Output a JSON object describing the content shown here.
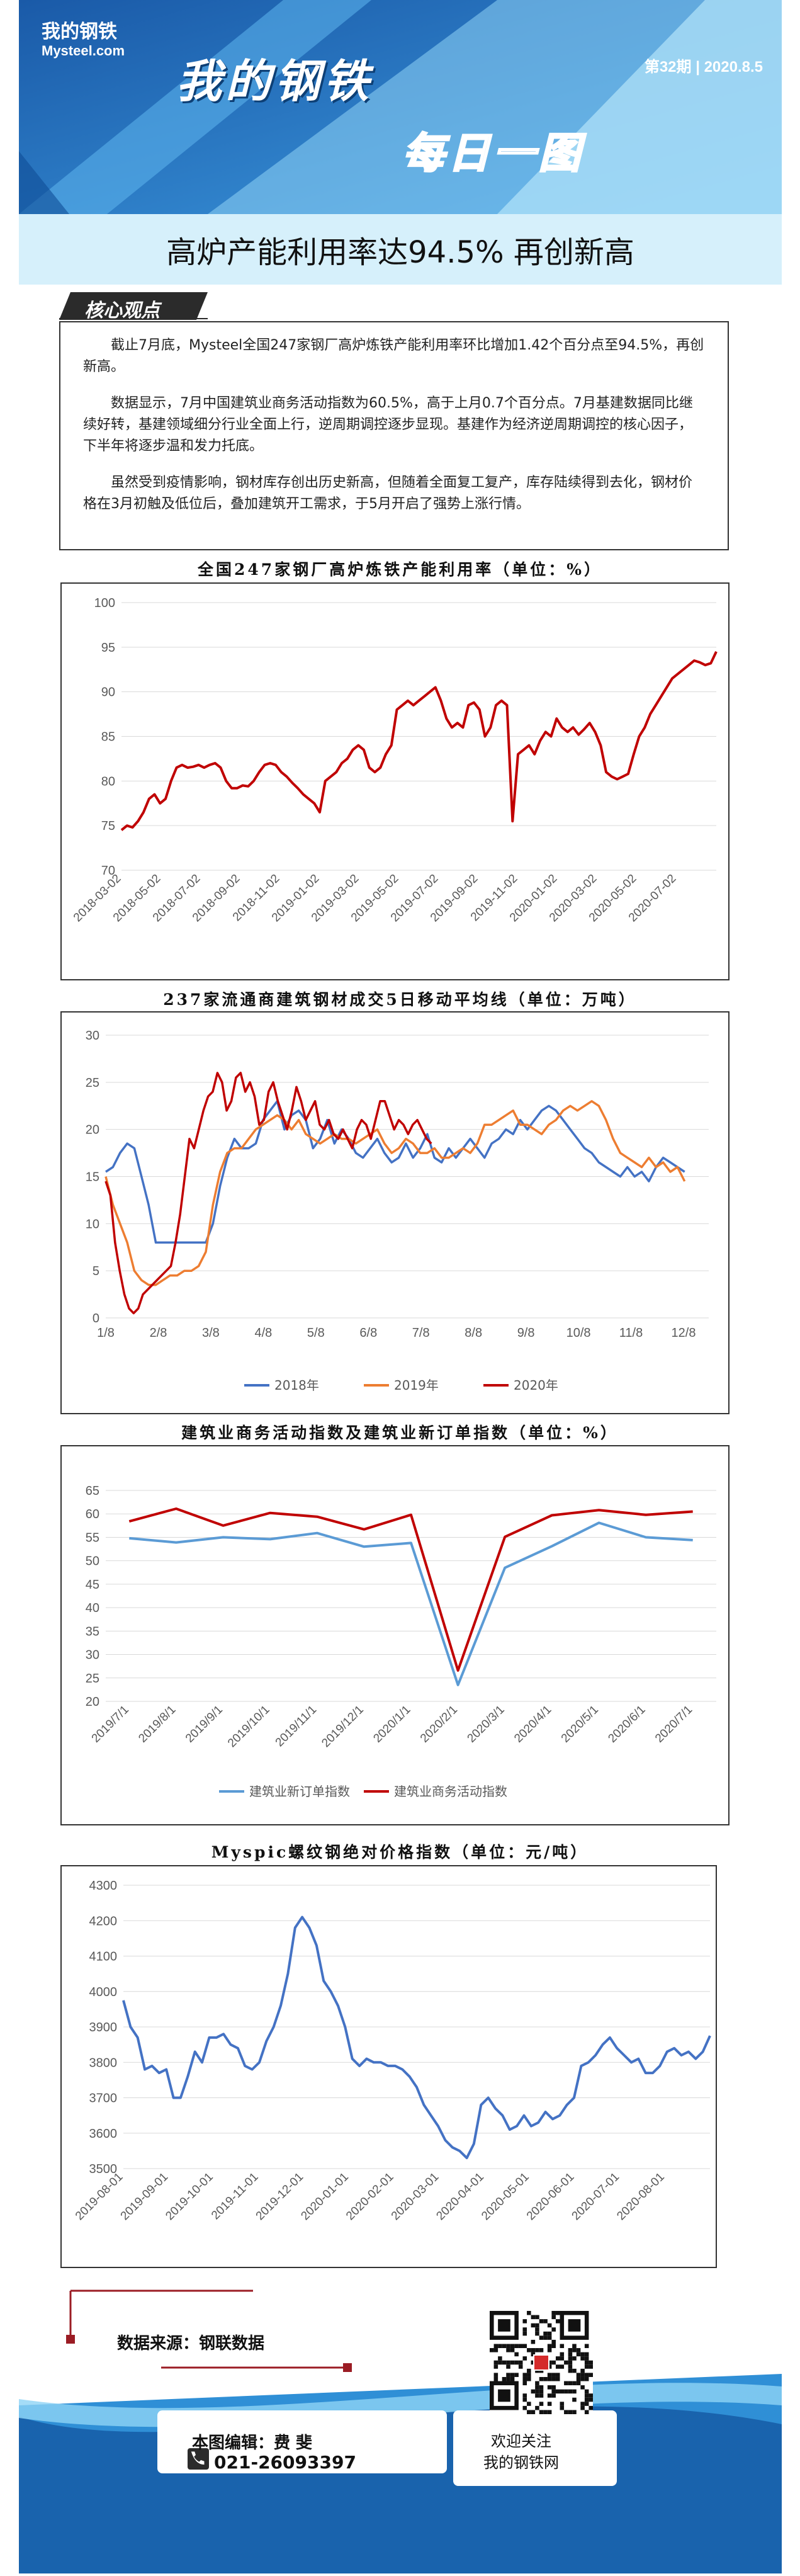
{
  "header": {
    "logo_cn": "我的钢铁",
    "logo_en": "Mysteel.com",
    "issue": "第32期 | 2020.8.5",
    "brand": "我的钢铁",
    "daily": "每日一图"
  },
  "headline": "高炉产能利用率达94.5%  再创新高",
  "core": {
    "tag": "核心观点",
    "paragraphs": [
      "截止7月底，Mysteel全国247家钢厂高炉炼铁产能利用率环比增加1.42个百分点至94.5%，再创新高。",
      "数据显示，7月中国建筑业商务活动指数为60.5%，高于上月0.7个百分点。7月基建数据同比继续好转，基建领域细分行业全面上行，逆周期调控逐步显现。基建作为经济逆周期调控的核心因子，下半年将逐步温和发力托底。",
      "虽然受到疫情影响，钢材库存创出历史新高，但随着全面复工复产，库存陆续得到去化，钢材价格在3月初触及低位后，叠加建筑开工需求，于5月开启了强势上涨行情。"
    ]
  },
  "chart_data": [
    {
      "type": "line",
      "title": "全国247家钢厂高炉炼铁产能利用率（单位：%）",
      "ylim": [
        70,
        100
      ],
      "yticks": [
        70,
        75,
        80,
        85,
        90,
        95,
        100
      ],
      "xticks": [
        "2018-03-02",
        "2018-05-02",
        "2018-07-02",
        "2018-09-02",
        "2018-11-02",
        "2019-01-02",
        "2019-03-02",
        "2019-05-02",
        "2019-07-02",
        "2019-09-02",
        "2019-11-02",
        "2020-01-02",
        "2020-03-02",
        "2020-05-02",
        "2020-07-02"
      ],
      "color": "#c00000",
      "series": [
        {
          "name": "高炉产能利用率",
          "values": [
            74.5,
            75,
            74.8,
            75.5,
            76.5,
            78,
            78.5,
            77.5,
            78,
            80,
            81.5,
            81.8,
            81.5,
            81.6,
            81.8,
            81.5,
            81.8,
            82,
            81.5,
            80,
            79.2,
            79.2,
            79.5,
            79.4,
            80,
            81,
            81.8,
            82,
            81.8,
            81,
            80.5,
            79.8,
            79.2,
            78.5,
            78,
            77.5,
            76.5,
            80,
            80.5,
            81,
            82,
            82.5,
            83.5,
            84,
            83.5,
            81.5,
            81,
            81.5,
            83,
            84,
            88,
            88.5,
            89,
            88.5,
            89,
            89.5,
            90,
            90.5,
            89,
            87,
            86,
            86.5,
            86,
            88.5,
            88.8,
            88,
            85,
            86,
            88.5,
            89,
            88.5,
            75.5,
            83,
            83.5,
            84,
            83,
            84.5,
            85.5,
            85,
            87,
            86,
            85.5,
            86,
            85.2,
            85.8,
            86.5,
            85.5,
            84,
            81,
            80.5,
            80.2,
            80.5,
            80.8,
            83,
            85,
            86,
            87.5,
            88.5,
            89.5,
            90.5,
            91.5,
            92,
            92.5,
            93,
            93.5,
            93.3,
            93,
            93.2,
            94.5
          ]
        }
      ]
    },
    {
      "type": "line",
      "title": "237家流通商建筑钢材成交5日移动平均线（单位：万吨）",
      "ylim": [
        0,
        30
      ],
      "yticks": [
        0,
        5,
        10,
        15,
        20,
        25,
        30
      ],
      "xticks": [
        "1/8",
        "2/8",
        "3/8",
        "4/8",
        "5/8",
        "6/8",
        "7/8",
        "8/8",
        "9/8",
        "10/8",
        "11/8",
        "12/8"
      ],
      "legend": [
        "2018年",
        "2019年",
        "2020年"
      ],
      "series": [
        {
          "name": "2018年",
          "color": "#4472c4",
          "values": [
            15.5,
            16,
            17.5,
            18.5,
            18,
            15,
            12,
            8,
            8,
            8,
            8,
            8,
            8,
            8,
            8,
            10,
            14,
            17,
            19,
            18,
            18,
            18.5,
            21,
            22,
            23,
            20,
            21.5,
            22,
            21,
            18,
            19,
            21,
            18.5,
            20,
            19,
            17.5,
            17,
            18,
            19,
            17.5,
            16.5,
            17,
            18.5,
            17,
            18,
            19.5,
            17,
            16.5,
            18,
            17,
            18,
            19,
            18,
            17,
            18.5,
            19,
            20,
            19.5,
            21,
            20,
            21,
            22,
            22.5,
            22,
            21,
            20,
            19,
            18,
            17.5,
            16.5,
            16,
            15.5,
            15,
            16,
            15,
            15.5,
            14.5,
            16,
            17,
            16.5,
            16,
            15.5
          ]
        },
        {
          "name": "2019年",
          "color": "#ed7d31",
          "values": [
            15,
            12,
            10,
            8,
            5,
            4,
            3.5,
            3.5,
            4,
            4.5,
            4.5,
            5,
            5,
            5.5,
            7,
            12,
            15.5,
            17.5,
            18,
            18,
            19,
            20,
            20.5,
            21,
            21.5,
            21,
            20,
            21,
            19.5,
            19,
            18.5,
            19,
            19.5,
            19,
            19,
            18.5,
            19,
            19.5,
            20,
            18.5,
            17.5,
            18,
            19,
            18.5,
            17.5,
            17.5,
            18,
            17,
            17,
            17.5,
            18,
            17.5,
            18.5,
            20.5,
            20.5,
            21,
            21.5,
            22,
            20.5,
            20.5,
            20,
            19.5,
            20.5,
            21,
            22,
            22.5,
            22,
            22.5,
            23,
            22.5,
            21,
            19,
            17.5,
            17,
            16.5,
            16,
            17,
            16,
            16.5,
            15.5,
            16,
            14.5
          ]
        },
        {
          "name": "2020年",
          "color": "#c00000",
          "values": [
            14.5,
            13,
            8,
            5,
            2.5,
            1,
            0.5,
            1,
            2.5,
            3,
            3.5,
            4,
            4.5,
            5,
            5.5,
            8,
            11,
            15,
            19,
            18,
            20,
            22,
            23.5,
            24,
            26,
            25,
            22,
            23,
            25.5,
            26,
            24,
            25,
            23.5,
            20.5,
            21,
            24,
            25,
            23,
            21.5,
            20,
            22,
            24.5,
            23,
            21,
            22,
            23,
            20.5,
            20,
            21,
            19.5,
            19,
            20,
            19,
            18,
            20,
            21,
            20.5,
            19,
            21,
            23,
            23,
            21.5,
            20,
            21,
            20.5,
            19.5,
            20.5,
            21,
            20,
            19,
            18.5
          ]
        }
      ]
    },
    {
      "type": "line",
      "title": "建筑业商务活动指数及建筑业新订单指数（单位：%）",
      "ylim": [
        20,
        65
      ],
      "yticks": [
        20,
        25,
        30,
        35,
        40,
        45,
        50,
        55,
        60,
        65
      ],
      "categories": [
        "2019/7/1",
        "2019/8/1",
        "2019/9/1",
        "2019/10/1",
        "2019/11/1",
        "2019/12/1",
        "2020/1/1",
        "2020/2/1",
        "2020/3/1",
        "2020/4/1",
        "2020/5/1",
        "2020/6/1",
        "2020/7/1"
      ],
      "series": [
        {
          "name": "建筑业新订单指数",
          "color": "#5b9bd5",
          "values": [
            54.8,
            53.9,
            55.0,
            54.6,
            55.9,
            53.0,
            53.8,
            23.5,
            48.5,
            53.1,
            58.1,
            55.0,
            54.4
          ]
        },
        {
          "name": "建筑业商务活动指数",
          "color": "#c00000",
          "values": [
            58.4,
            61.1,
            57.5,
            60.2,
            59.4,
            56.7,
            59.8,
            26.6,
            55.1,
            59.7,
            60.8,
            59.8,
            60.5
          ]
        }
      ]
    },
    {
      "type": "line",
      "title": "Myspic螺纹钢绝对价格指数（单位：元/吨）",
      "ylim": [
        3500,
        4300
      ],
      "yticks": [
        3500,
        3600,
        3700,
        3800,
        3900,
        4000,
        4100,
        4200,
        4300
      ],
      "xticks": [
        "2019-08-01",
        "2019-09-01",
        "2019-10-01",
        "2019-11-01",
        "2019-12-01",
        "2020-01-01",
        "2020-02-01",
        "2020-03-01",
        "2020-04-01",
        "2020-05-01",
        "2020-06-01",
        "2020-07-01",
        "2020-08-01"
      ],
      "color": "#4472c4",
      "series": [
        {
          "name": "螺纹钢价格指数",
          "values": [
            3975,
            3900,
            3870,
            3780,
            3790,
            3770,
            3780,
            3700,
            3700,
            3760,
            3830,
            3800,
            3870,
            3870,
            3880,
            3850,
            3840,
            3790,
            3780,
            3800,
            3860,
            3900,
            3960,
            4050,
            4180,
            4210,
            4180,
            4130,
            4030,
            4000,
            3960,
            3900,
            3810,
            3790,
            3810,
            3800,
            3800,
            3790,
            3790,
            3780,
            3760,
            3730,
            3680,
            3650,
            3620,
            3580,
            3560,
            3550,
            3530,
            3570,
            3680,
            3700,
            3670,
            3650,
            3610,
            3620,
            3650,
            3620,
            3630,
            3660,
            3640,
            3650,
            3680,
            3700,
            3790,
            3800,
            3820,
            3850,
            3870,
            3840,
            3820,
            3800,
            3810,
            3770,
            3770,
            3790,
            3830,
            3840,
            3820,
            3830,
            3810,
            3830,
            3875
          ]
        }
      ]
    }
  ],
  "footer": {
    "source": "数据来源：钢联数据",
    "editor": "本图编辑：费 斐",
    "phone": "021-26093397",
    "follow1": "欢迎关注",
    "follow2": "我的钢铁网"
  }
}
